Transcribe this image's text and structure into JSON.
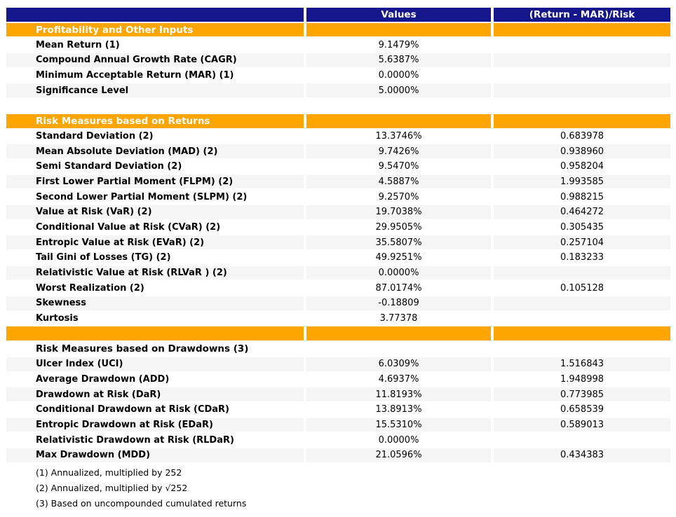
{
  "colors": {
    "header_bg": "#15158C",
    "header_text": "#FFFFFF",
    "section_bg": "#FFA500",
    "section_text": "#FFFFFF",
    "stripe_bg": "#F5F5F5",
    "body_text": "#000000"
  },
  "chart_data": {
    "type": "table",
    "title": "Portfolio risk and return measures report",
    "columns": [
      "",
      "Values",
      "(Return - MAR)/Risk"
    ],
    "rows": [
      {
        "type": "section",
        "label": "Profitability and Other Inputs",
        "value": "",
        "ratio": "",
        "shaded": false
      },
      {
        "type": "data",
        "label": "Mean Return (1)",
        "value": "9.1479%",
        "ratio": "",
        "shaded": false
      },
      {
        "type": "data",
        "label": "Compound Annual Growth Rate (CAGR)",
        "value": "5.6387%",
        "ratio": "",
        "shaded": true
      },
      {
        "type": "data",
        "label": "Minimum Acceptable Return (MAR) (1)",
        "value": "0.0000%",
        "ratio": "",
        "shaded": false
      },
      {
        "type": "data",
        "label": "Significance Level",
        "value": "5.0000%",
        "ratio": "",
        "shaded": true
      },
      {
        "type": "blank",
        "label": "",
        "value": "",
        "ratio": "",
        "shaded": false
      },
      {
        "type": "section",
        "label": "Risk Measures based on Returns",
        "value": "",
        "ratio": "",
        "shaded": false
      },
      {
        "type": "data",
        "label": "Standard Deviation (2)",
        "value": "13.3746%",
        "ratio": "0.683978",
        "shaded": false
      },
      {
        "type": "data",
        "label": "Mean Absolute Deviation (MAD) (2)",
        "value": "9.7426%",
        "ratio": "0.938960",
        "shaded": true
      },
      {
        "type": "data",
        "label": "Semi Standard Deviation (2)",
        "value": "9.5470%",
        "ratio": "0.958204",
        "shaded": false
      },
      {
        "type": "data",
        "label": "First Lower Partial Moment (FLPM) (2)",
        "value": "4.5887%",
        "ratio": "1.993585",
        "shaded": true
      },
      {
        "type": "data",
        "label": "Second Lower Partial Moment (SLPM) (2)",
        "value": "9.2570%",
        "ratio": "0.988215",
        "shaded": false
      },
      {
        "type": "data",
        "label": "Value at Risk (VaR) (2)",
        "value": "19.7038%",
        "ratio": "0.464272",
        "shaded": true
      },
      {
        "type": "data",
        "label": "Conditional Value at Risk (CVaR) (2)",
        "value": "29.9505%",
        "ratio": "0.305435",
        "shaded": false
      },
      {
        "type": "data",
        "label": "Entropic Value at Risk (EVaR) (2)",
        "value": "35.5807%",
        "ratio": "0.257104",
        "shaded": true
      },
      {
        "type": "data",
        "label": "Tail Gini of Losses (TG) (2)",
        "value": "49.9251%",
        "ratio": "0.183233",
        "shaded": false
      },
      {
        "type": "data",
        "label": "Relativistic Value at Risk (RLVaR ) (2)",
        "value": "0.0000%",
        "ratio": "",
        "shaded": true
      },
      {
        "type": "data",
        "label": "Worst Realization (2)",
        "value": "87.0174%",
        "ratio": "0.105128",
        "shaded": false
      },
      {
        "type": "data",
        "label": "Skewness",
        "value": "-0.18809",
        "ratio": "",
        "shaded": true
      },
      {
        "type": "data",
        "label": "Kurtosis",
        "value": "3.77378",
        "ratio": "",
        "shaded": false
      },
      {
        "type": "section",
        "label": "",
        "value": "",
        "ratio": "",
        "shaded": false
      },
      {
        "type": "subheader",
        "label": "Risk Measures based on Drawdowns (3)",
        "value": "",
        "ratio": "",
        "shaded": false
      },
      {
        "type": "data",
        "label": "Ulcer Index (UCI)",
        "value": "6.0309%",
        "ratio": "1.516843",
        "shaded": true
      },
      {
        "type": "data",
        "label": "Average Drawdown (ADD)",
        "value": "4.6937%",
        "ratio": "1.948998",
        "shaded": false
      },
      {
        "type": "data",
        "label": "Drawdown at Risk (DaR)",
        "value": "11.8193%",
        "ratio": "0.773985",
        "shaded": true
      },
      {
        "type": "data",
        "label": "Conditional Drawdown at Risk (CDaR)",
        "value": "13.8913%",
        "ratio": "0.658539",
        "shaded": false
      },
      {
        "type": "data",
        "label": "Entropic Drawdown at Risk (EDaR)",
        "value": "15.5310%",
        "ratio": "0.589013",
        "shaded": true
      },
      {
        "type": "data",
        "label": "Relativistic Drawdown at Risk (RLDaR)",
        "value": "0.0000%",
        "ratio": "",
        "shaded": false
      },
      {
        "type": "data",
        "label": "Max Drawdown (MDD)",
        "value": "21.0596%",
        "ratio": "0.434383",
        "shaded": true
      }
    ],
    "footnotes": [
      "(1) Annualized, multiplied by 252",
      "(2) Annualized, multiplied by √252",
      "(3) Based on uncompounded cumulated returns"
    ]
  }
}
